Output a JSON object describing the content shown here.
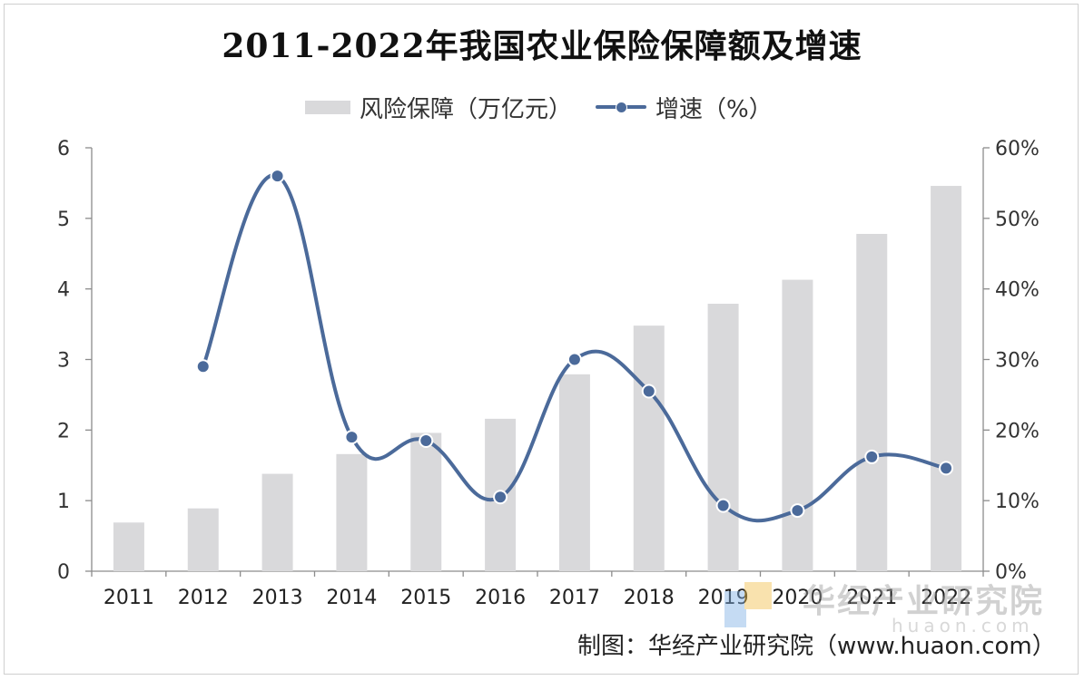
{
  "chart_data": {
    "type": "bar+line",
    "title": "2011-2022年我国农业保险保障额及增速",
    "categories": [
      "2011",
      "2012",
      "2013",
      "2014",
      "2015",
      "2016",
      "2017",
      "2018",
      "2019",
      "2020",
      "2021",
      "2022"
    ],
    "series": [
      {
        "name": "风险保障（万亿元）",
        "type": "bar",
        "axis": "left",
        "color": "#d9d9db",
        "values": [
          0.69,
          0.89,
          1.38,
          1.66,
          1.96,
          2.16,
          2.79,
          3.48,
          3.79,
          4.13,
          4.78,
          5.46
        ]
      },
      {
        "name": "增速（%）",
        "type": "line",
        "axis": "right",
        "color": "#4b6a9a",
        "values": [
          null,
          29,
          56,
          19,
          18.5,
          10.5,
          30,
          25.5,
          9.3,
          8.6,
          16.2,
          14.6
        ]
      }
    ],
    "y_left": {
      "range": [
        0,
        6
      ],
      "ticks": [
        "0",
        "1",
        "2",
        "3",
        "4",
        "5",
        "6"
      ]
    },
    "y_right": {
      "range": [
        0,
        60
      ],
      "ticks": [
        "0%",
        "10%",
        "20%",
        "30%",
        "40%",
        "50%",
        "60%"
      ]
    },
    "grid": false,
    "legend_position": "top"
  },
  "source": "制图：华经产业研究院（www.huaon.com）",
  "watermark": {
    "cn": "华经产业研究院",
    "en": "huaon.com"
  }
}
